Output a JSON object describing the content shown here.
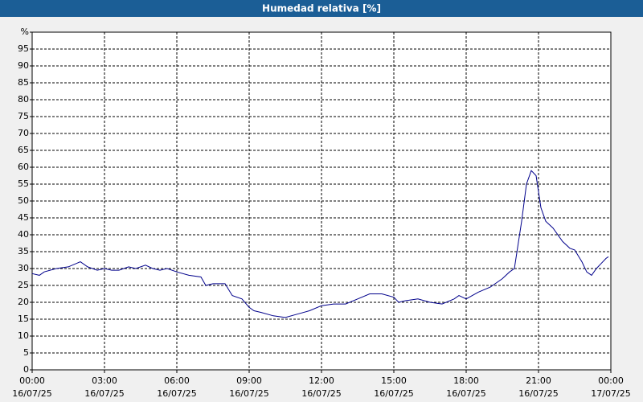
{
  "chart_data": {
    "type": "line",
    "title": "Humedad relativa [%]",
    "x": [
      0,
      0.3,
      0.5,
      1,
      1.5,
      2,
      2.3,
      2.7,
      3,
      3.3,
      3.6,
      4,
      4.3,
      4.7,
      5,
      5.3,
      5.6,
      6,
      6.5,
      7,
      7.2,
      7.5,
      8,
      8.3,
      8.7,
      9,
      9.2,
      9.5,
      10,
      10.5,
      11,
      11.5,
      12,
      12.5,
      13,
      13.5,
      14,
      14.5,
      15,
      15.2,
      15.5,
      16,
      16.5,
      17,
      17.5,
      17.7,
      18,
      18.5,
      19,
      19.5,
      19.8,
      20,
      20.3,
      20.5,
      20.7,
      20.9,
      21.1,
      21.3,
      21.6,
      22,
      22.3,
      22.5,
      22.8,
      23,
      23.2,
      23.4,
      23.6,
      23.8,
      23.9
    ],
    "series": [
      {
        "name": "Humedad relativa",
        "color": "#00008b",
        "values": [
          28.5,
          28,
          29,
          30,
          30.5,
          32,
          30.5,
          29.5,
          30,
          29.5,
          29.5,
          30.5,
          30,
          31,
          30,
          29.5,
          30,
          29,
          28,
          27.5,
          25,
          25.5,
          25.5,
          22,
          21,
          18.5,
          17.5,
          17,
          16,
          15.5,
          16.5,
          17.5,
          19,
          19.5,
          19.5,
          21,
          22.5,
          22.5,
          21.5,
          20,
          20.5,
          21,
          20,
          19.5,
          21,
          22,
          21,
          23,
          24.5,
          27,
          29,
          30,
          44,
          55,
          59,
          57.5,
          48,
          44,
          42,
          38,
          36,
          35.5,
          32,
          29,
          28,
          30,
          31.5,
          33,
          33.5
        ]
      }
    ],
    "xlim": [
      0,
      24
    ],
    "xticks": [
      {
        "value": 0,
        "label": "00:00"
      },
      {
        "value": 3,
        "label": "03:00"
      },
      {
        "value": 6,
        "label": "06:00"
      },
      {
        "value": 9,
        "label": "09:00"
      },
      {
        "value": 12,
        "label": "12:00"
      },
      {
        "value": 15,
        "label": "15:00"
      },
      {
        "value": 18,
        "label": "18:00"
      },
      {
        "value": 21,
        "label": "21:00"
      },
      {
        "value": 24,
        "label": "00:00"
      }
    ],
    "xtick_dates": [
      "16/07/25",
      "16/07/25",
      "16/07/25",
      "16/07/25",
      "16/07/25",
      "16/07/25",
      "16/07/25",
      "16/07/25",
      "17/07/25"
    ],
    "ylim": [
      0,
      100
    ],
    "yticks": [
      0,
      5,
      10,
      15,
      20,
      25,
      30,
      35,
      40,
      45,
      50,
      55,
      60,
      65,
      70,
      75,
      80,
      85,
      90,
      95,
      {
        "value": 100,
        "label": "%"
      }
    ],
    "grid": true
  }
}
